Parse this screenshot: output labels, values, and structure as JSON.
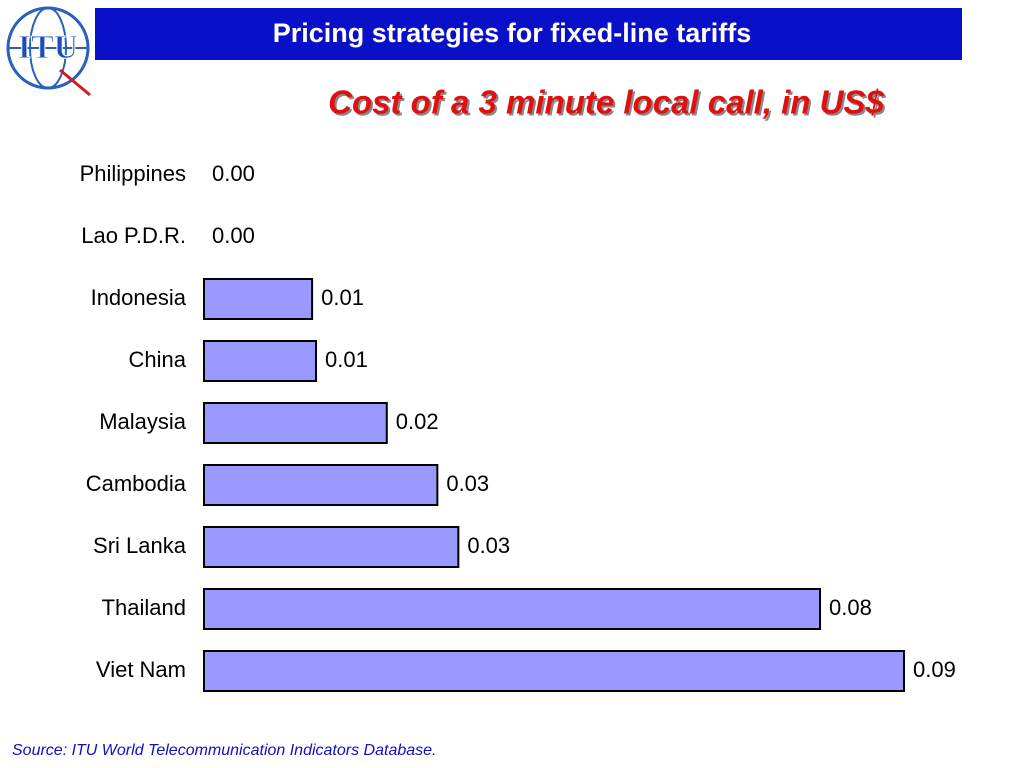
{
  "logo": "ITU",
  "chart_data": {
    "type": "bar",
    "orientation": "horizontal",
    "title": "Pricing strategies for fixed-line tariffs",
    "subtitle": "Cost of a 3 minute local call, in US$",
    "categories": [
      "Philippines",
      "Lao P.D.R.",
      "Indonesia",
      "China",
      "Malaysia",
      "Cambodia",
      "Sri Lanka",
      "Thailand",
      "Viet Nam"
    ],
    "values": [
      0,
      0,
      0.0139,
      0.0144,
      0.0235,
      0.03,
      0.0327,
      0.0792,
      0.09
    ],
    "value_labels": [
      "0.00",
      "0.00",
      "0.01",
      "0.01",
      "0.02",
      "0.03",
      "0.03",
      "0.08",
      "0.09"
    ],
    "color": "#9999ff",
    "source": "Source: ITU World Telecommunication Indicators Database."
  }
}
